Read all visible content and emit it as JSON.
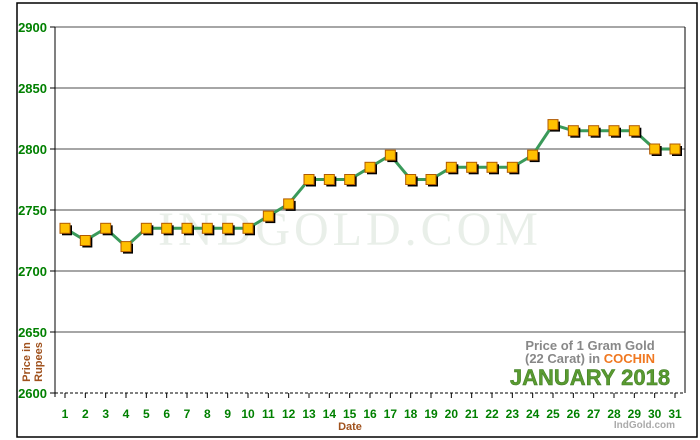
{
  "chart_data": {
    "type": "line",
    "xlabel": "Date",
    "ylabel_line1": "Price in",
    "ylabel_line2": "Rupees",
    "ylim": [
      2600,
      2900
    ],
    "yticks": [
      2600,
      2650,
      2700,
      2750,
      2800,
      2850,
      2900
    ],
    "grid": true,
    "x": [
      1,
      2,
      3,
      4,
      5,
      6,
      7,
      8,
      9,
      10,
      11,
      12,
      13,
      14,
      15,
      16,
      17,
      18,
      19,
      20,
      21,
      22,
      23,
      24,
      25,
      26,
      27,
      28,
      29,
      30,
      31
    ],
    "values": [
      2735,
      2725,
      2735,
      2720,
      2735,
      2735,
      2735,
      2735,
      2735,
      2735,
      2745,
      2755,
      2775,
      2775,
      2775,
      2785,
      2795,
      2775,
      2775,
      2785,
      2785,
      2785,
      2785,
      2795,
      2820,
      2815,
      2815,
      2815,
      2815,
      2800,
      2800
    ],
    "line_color": "#3a9a5a",
    "marker_color": "#ffc000",
    "legend": {
      "line1": "Price of 1 Gram Gold",
      "line2a": "(22 Carat) in ",
      "city": "COCHIN",
      "month": "JANUARY 2018"
    },
    "watermark": "IndGold.com",
    "credit": "IndGold.com"
  }
}
